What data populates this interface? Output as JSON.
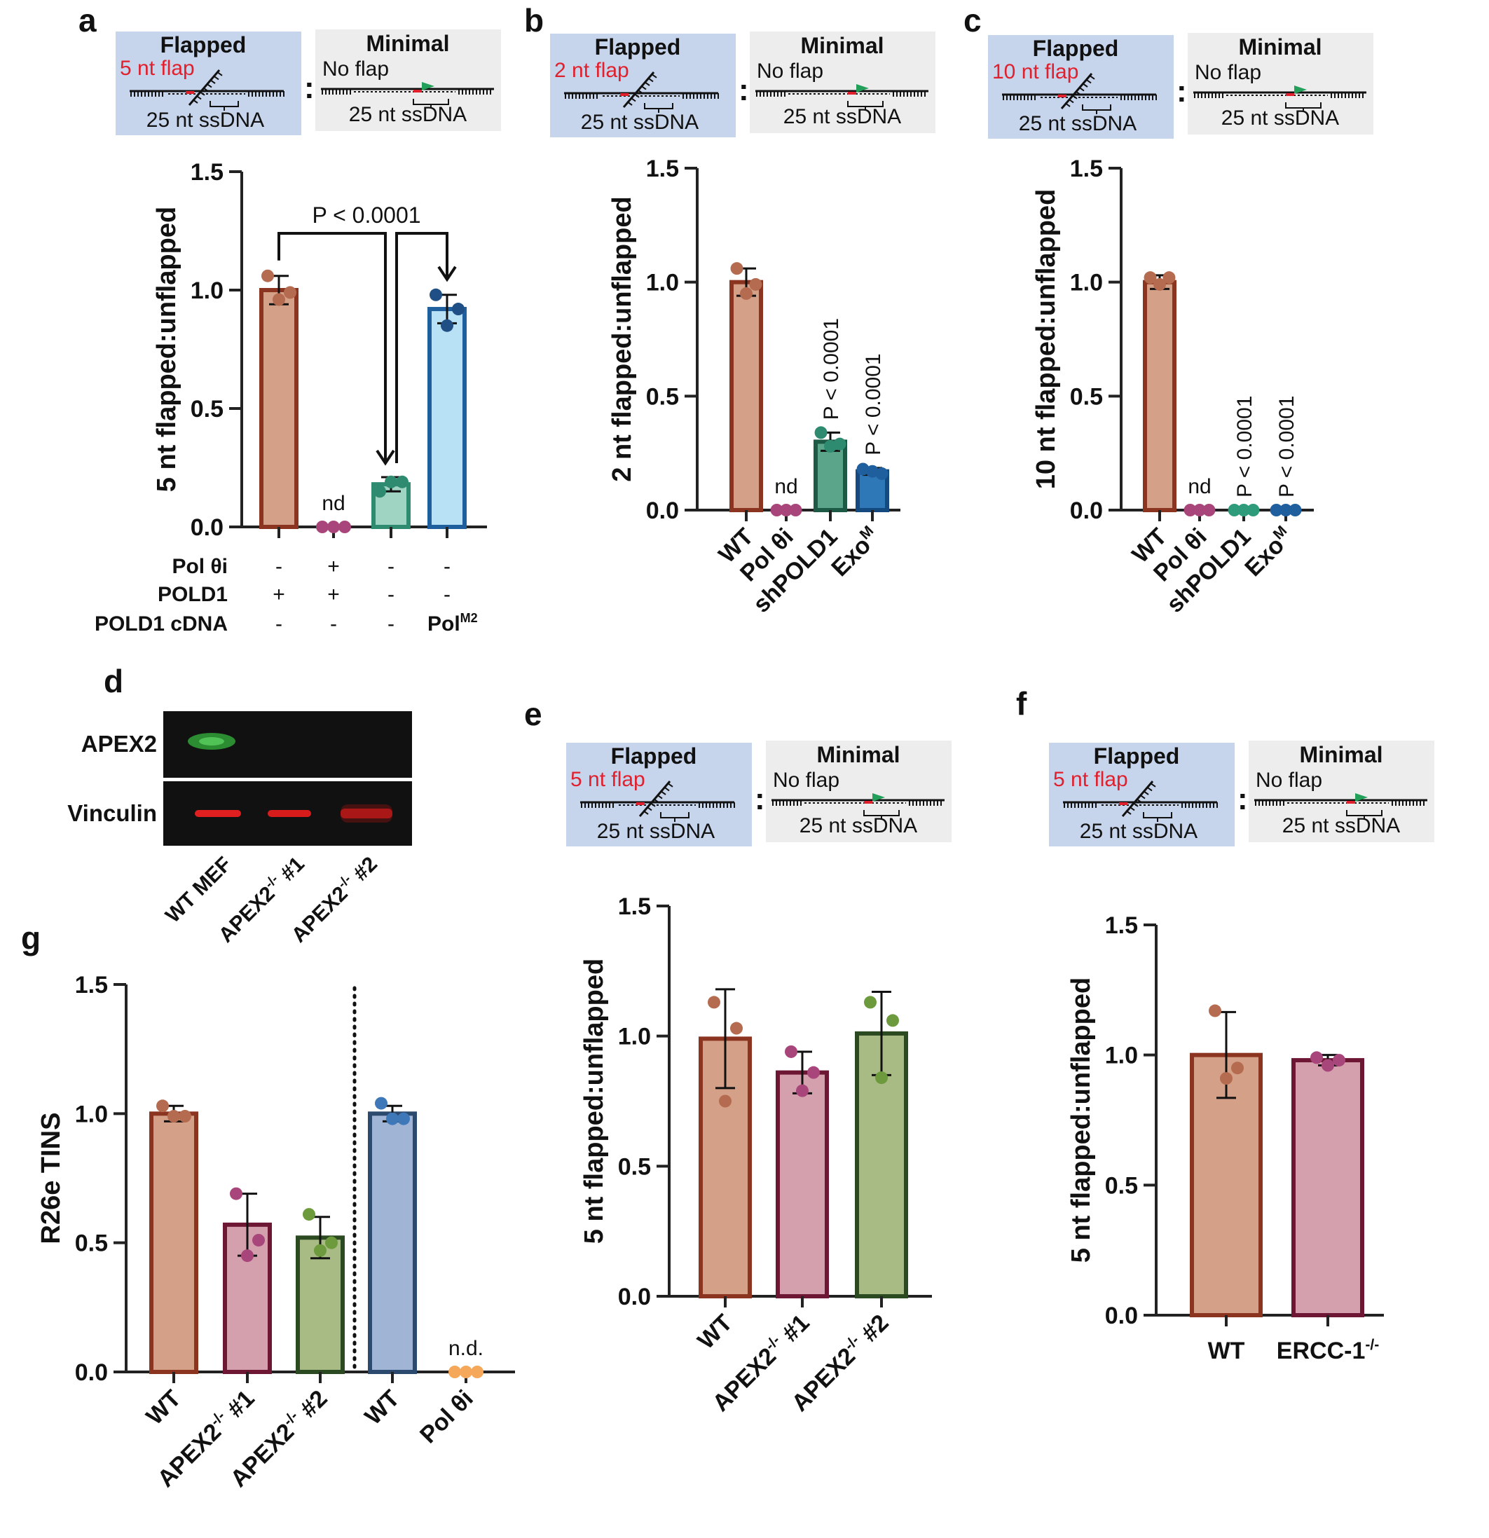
{
  "colors": {
    "flapped_box": "#c7d5ec",
    "minimal_box": "#ededed",
    "flap_red": "#e0202c",
    "green_arrow": "#22a05a",
    "axis": "#222222"
  },
  "schematic": {
    "flapped_title": "Flapped",
    "minimal_title": "Minimal",
    "no_flap": "No flap",
    "ssdna": "25 nt ssDNA",
    "sep": ":"
  },
  "panels": {
    "a": {
      "letter": "a",
      "flap_label": "5 nt flap"
    },
    "b": {
      "letter": "b",
      "flap_label": "2 nt flap"
    },
    "c": {
      "letter": "c",
      "flap_label": "10 nt flap"
    },
    "d": {
      "letter": "d"
    },
    "e": {
      "letter": "e",
      "flap_label": "5 nt flap"
    },
    "f": {
      "letter": "f",
      "flap_label": "5 nt flap"
    },
    "g": {
      "letter": "g"
    }
  },
  "panel_a_table": {
    "rows": [
      {
        "label": "Pol θi",
        "cells": [
          "-",
          "+",
          "-",
          "-"
        ]
      },
      {
        "label": "POLD1",
        "cells": [
          "+",
          "+",
          "-",
          "-"
        ]
      },
      {
        "label": "POLD1 cDNA",
        "cells": [
          "-",
          "-",
          "-",
          "Pol"
        ],
        "last_sup": "M2"
      }
    ]
  },
  "western": {
    "row_labels": [
      "APEX2",
      "Vinculin"
    ],
    "lane_labels": [
      {
        "main": "WT MEF",
        "sup": "",
        "tail": ""
      },
      {
        "main": "APEX2",
        "sup": "-/-",
        "tail": " #1"
      },
      {
        "main": "APEX2",
        "sup": "-/-",
        "tail": " #2"
      }
    ]
  },
  "chart_data": [
    {
      "id": "a",
      "type": "bar",
      "ylabel": "5 nt flapped:unflapped",
      "ylim": [
        0,
        1.5
      ],
      "yticks": [
        "0.0",
        "0.5",
        "1.0",
        "1.5"
      ],
      "categories": [
        "",
        "",
        "",
        ""
      ],
      "values": [
        1.0,
        0.0,
        0.18,
        0.92
      ],
      "errors": [
        0.06,
        0,
        0.03,
        0.06
      ],
      "points": [
        [
          1.06,
          0.96,
          0.99
        ],
        [
          0,
          0,
          0
        ],
        [
          0.15,
          0.19,
          0.19
        ],
        [
          0.98,
          0.85,
          0.92
        ]
      ],
      "fill": [
        "#d5a088",
        "#ffffff",
        "#9fd3c2",
        "#b8e1f6"
      ],
      "stroke": [
        "#8b3420",
        "#a04a70",
        "#2e8b70",
        "#1f5f9e"
      ],
      "dot": [
        "#b56b4f",
        "#a8457a",
        "#2e8b70",
        "#1f4f85"
      ],
      "annotations": [
        {
          "bar": 1,
          "text": "nd",
          "style": "nd"
        },
        {
          "text": "P < 0.0001",
          "style": "bracket"
        }
      ]
    },
    {
      "id": "b",
      "type": "bar",
      "ylabel": "2 nt flapped:unflapped",
      "ylim": [
        0,
        1.5
      ],
      "yticks": [
        "0.0",
        "0.5",
        "1.0",
        "1.5"
      ],
      "categories": [
        "WT",
        "Pol θi",
        "shPOLD1",
        "Exo"
      ],
      "cat_sup": [
        "",
        "",
        "",
        "M"
      ],
      "values": [
        1.0,
        0.0,
        0.3,
        0.17
      ],
      "errors": [
        0.06,
        0,
        0.04,
        0.015
      ],
      "points": [
        [
          1.06,
          0.95,
          0.99
        ],
        [
          0,
          0,
          0
        ],
        [
          0.34,
          0.28,
          0.29
        ],
        [
          0.18,
          0.17,
          0.16
        ]
      ],
      "fill": [
        "#d5a088",
        "#ffffff",
        "#5ba68a",
        "#2f78b7"
      ],
      "stroke": [
        "#8b3420",
        "#a04a70",
        "#1d5a45",
        "#144a80"
      ],
      "dot": [
        "#b56b4f",
        "#a8457a",
        "#2e8b70",
        "#1f5f9e"
      ],
      "annotations": [
        {
          "bar": 1,
          "text": "nd",
          "style": "nd"
        },
        {
          "bar": 2,
          "text": "P < 0.0001",
          "style": "vertical"
        },
        {
          "bar": 3,
          "text": "P < 0.0001",
          "style": "vertical"
        }
      ]
    },
    {
      "id": "c",
      "type": "bar",
      "ylabel": "10 nt flapped:unflapped",
      "ylim": [
        0,
        1.5
      ],
      "yticks": [
        "0.0",
        "0.5",
        "1.0",
        "1.5"
      ],
      "categories": [
        "WT",
        "Pol θi",
        "shPOLD1",
        "Exo"
      ],
      "cat_sup": [
        "",
        "",
        "",
        "M"
      ],
      "values": [
        1.0,
        0.0,
        0.0,
        0.0
      ],
      "errors": [
        0.03,
        0,
        0,
        0
      ],
      "points": [
        [
          1.02,
          0.99,
          1.02
        ],
        [
          0,
          0,
          0
        ],
        [
          0,
          0,
          0
        ],
        [
          0,
          0,
          0
        ]
      ],
      "fill": [
        "#d5a088",
        "#ffffff",
        "#ffffff",
        "#ffffff"
      ],
      "stroke": [
        "#8b3420",
        "#a04a70",
        "#2e8b70",
        "#1f5f9e"
      ],
      "dot": [
        "#b56b4f",
        "#a8457a",
        "#2e9b7a",
        "#1f5f9e"
      ],
      "annotations": [
        {
          "bar": 1,
          "text": "nd",
          "style": "nd"
        },
        {
          "bar": 2,
          "text": "P < 0.0001",
          "style": "vertical"
        },
        {
          "bar": 3,
          "text": "P < 0.0001",
          "style": "vertical"
        }
      ]
    },
    {
      "id": "e",
      "type": "bar",
      "ylabel": "5 nt flapped:unflapped",
      "ylim": [
        0,
        1.5
      ],
      "yticks": [
        "0.0",
        "0.5",
        "1.0",
        "1.5"
      ],
      "categories": [
        "WT",
        "APEX2",
        "APEX2"
      ],
      "cat_sup": [
        "",
        "-/-",
        "-/-"
      ],
      "cat_tail": [
        "",
        " #1",
        " #2"
      ],
      "values": [
        0.99,
        0.86,
        1.01
      ],
      "errors": [
        0.19,
        0.08,
        0.16
      ],
      "points": [
        [
          1.13,
          0.75,
          1.03
        ],
        [
          0.94,
          0.79,
          0.86
        ],
        [
          1.13,
          0.84,
          1.06
        ]
      ],
      "fill": [
        "#d5a088",
        "#d5a0ae",
        "#a8bb85"
      ],
      "stroke": [
        "#8b3420",
        "#6e1735",
        "#2c4a21"
      ],
      "dot": [
        "#b56b4f",
        "#a8457a",
        "#6c9a3c"
      ],
      "annotations": []
    },
    {
      "id": "f",
      "type": "bar",
      "ylabel": "5 nt flapped:unflapped",
      "ylim": [
        0,
        1.5
      ],
      "yticks": [
        "0.0",
        "0.5",
        "1.0",
        "1.5"
      ],
      "categories": [
        "WT",
        "ERCC-1"
      ],
      "cat_sup": [
        "",
        "-/-"
      ],
      "values": [
        1.0,
        0.98
      ],
      "errors": [
        0.165,
        0.02
      ],
      "points": [
        [
          1.17,
          0.91,
          0.95
        ],
        [
          0.99,
          0.96,
          0.98
        ]
      ],
      "fill": [
        "#d5a088",
        "#d5a0ae"
      ],
      "stroke": [
        "#8b3420",
        "#6e1735"
      ],
      "dot": [
        "#b56b4f",
        "#a8457a"
      ],
      "annotations": []
    },
    {
      "id": "g",
      "type": "bar",
      "ylabel": "R26e TINS",
      "ylim": [
        0,
        1.5
      ],
      "yticks": [
        "0.0",
        "0.5",
        "1.0",
        "1.5"
      ],
      "categories": [
        "WT",
        "APEX2",
        "APEX2",
        "WT",
        "Pol θi"
      ],
      "cat_sup": [
        "",
        "-/-",
        "-/-",
        "",
        ""
      ],
      "cat_tail": [
        "",
        " #1",
        " #2",
        "",
        ""
      ],
      "values": [
        1.0,
        0.57,
        0.52,
        1.0,
        0.0
      ],
      "errors": [
        0.03,
        0.12,
        0.08,
        0.03,
        0
      ],
      "points": [
        [
          1.03,
          0.99,
          0.99
        ],
        [
          0.69,
          0.45,
          0.51
        ],
        [
          0.61,
          0.47,
          0.5
        ],
        [
          1.04,
          0.98,
          0.98
        ],
        [
          0,
          0,
          0
        ]
      ],
      "fill": [
        "#d5a088",
        "#d5a0ae",
        "#a8bb85",
        "#a0b4d6",
        "#ffffff"
      ],
      "stroke": [
        "#8b3420",
        "#6e1735",
        "#2c4a21",
        "#2c4a6e",
        "#f2a050"
      ],
      "dot": [
        "#b56b4f",
        "#a8457a",
        "#6c9a3c",
        "#3f78b8",
        "#f5a85a"
      ],
      "annotations": [
        {
          "bar": 4,
          "text": "n.d.",
          "style": "nd"
        }
      ]
    }
  ]
}
